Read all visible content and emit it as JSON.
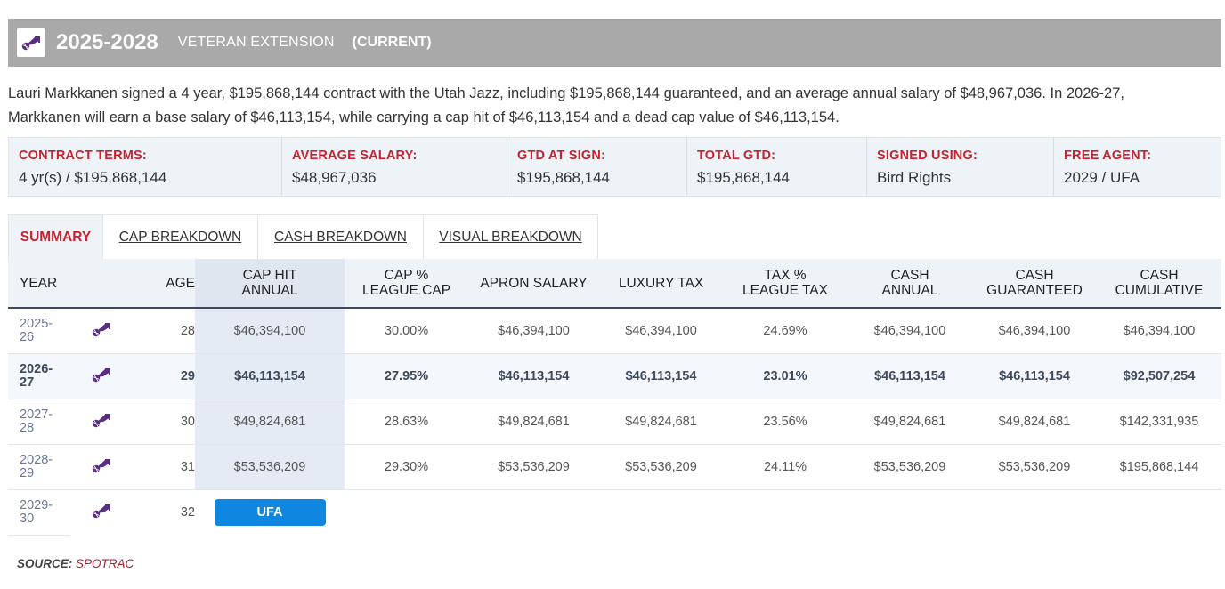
{
  "header": {
    "years": "2025-2028",
    "type": "VETERAN EXTENSION",
    "status": "(CURRENT)",
    "team_color": "#5a2d82"
  },
  "description": {
    "line1": "Lauri Markkanen signed a 4 year, $195,868,144 contract with the Utah Jazz, including $195,868,144 guaranteed, and an average annual salary of $48,967,036. In 2026-27,",
    "line2": "Markkanen will earn a base salary of $46,113,154, while carrying a cap hit of $46,113,154 and a dead cap value of $46,113,154."
  },
  "terms": [
    {
      "label": "CONTRACT TERMS:",
      "value": "4 yr(s) / $195,868,144"
    },
    {
      "label": "AVERAGE SALARY:",
      "value": "$48,967,036"
    },
    {
      "label": "GTD AT SIGN:",
      "value": "$195,868,144"
    },
    {
      "label": "TOTAL GTD:",
      "value": "$195,868,144"
    },
    {
      "label": "SIGNED USING:",
      "value": "Bird Rights"
    },
    {
      "label": "FREE AGENT:",
      "value": "2029 / UFA"
    }
  ],
  "tabs": [
    "SUMMARY",
    "CAP BREAKDOWN",
    "CASH BREAKDOWN",
    "VISUAL BREAKDOWN"
  ],
  "columns": {
    "year": "YEAR",
    "age": "AGE",
    "cap_hit_1": "CAP HIT",
    "cap_hit_2": "ANNUAL",
    "cap_pct_1": "CAP %",
    "cap_pct_2": "LEAGUE CAP",
    "apron": "APRON SALARY",
    "luxury": "LUXURY TAX",
    "tax_pct_1": "TAX %",
    "tax_pct_2": "LEAGUE TAX",
    "cash_annual_1": "CASH",
    "cash_annual_2": "ANNUAL",
    "cash_gtd_1": "CASH",
    "cash_gtd_2": "GUARANTEED",
    "cash_cum_1": "CASH",
    "cash_cum_2": "CUMULATIVE"
  },
  "rows": [
    {
      "year1": "2025-",
      "year2": "26",
      "age": "28",
      "cap_hit": "$46,394,100",
      "cap_pct": "30.00%",
      "apron": "$46,394,100",
      "luxury": "$46,394,100",
      "tax_pct": "24.69%",
      "cash_annual": "$46,394,100",
      "cash_gtd": "$46,394,100",
      "cash_cum": "$46,394,100"
    },
    {
      "year1": "2026-",
      "year2": "27",
      "age": "29",
      "cap_hit": "$46,113,154",
      "cap_pct": "27.95%",
      "apron": "$46,113,154",
      "luxury": "$46,113,154",
      "tax_pct": "23.01%",
      "cash_annual": "$46,113,154",
      "cash_gtd": "$46,113,154",
      "cash_cum": "$92,507,254"
    },
    {
      "year1": "2027-",
      "year2": "28",
      "age": "30",
      "cap_hit": "$49,824,681",
      "cap_pct": "28.63%",
      "apron": "$49,824,681",
      "luxury": "$49,824,681",
      "tax_pct": "23.56%",
      "cash_annual": "$49,824,681",
      "cash_gtd": "$49,824,681",
      "cash_cum": "$142,331,935"
    },
    {
      "year1": "2028-",
      "year2": "29",
      "age": "31",
      "cap_hit": "$53,536,209",
      "cap_pct": "29.30%",
      "apron": "$53,536,209",
      "luxury": "$53,536,209",
      "tax_pct": "24.11%",
      "cash_annual": "$53,536,209",
      "cash_gtd": "$53,536,209",
      "cash_cum": "$195,868,144"
    }
  ],
  "ufa_row": {
    "year1": "2029-",
    "year2": "30",
    "age": "32",
    "badge": "UFA"
  },
  "source": {
    "label": "SOURCE:",
    "value": "SPOTRAC"
  }
}
